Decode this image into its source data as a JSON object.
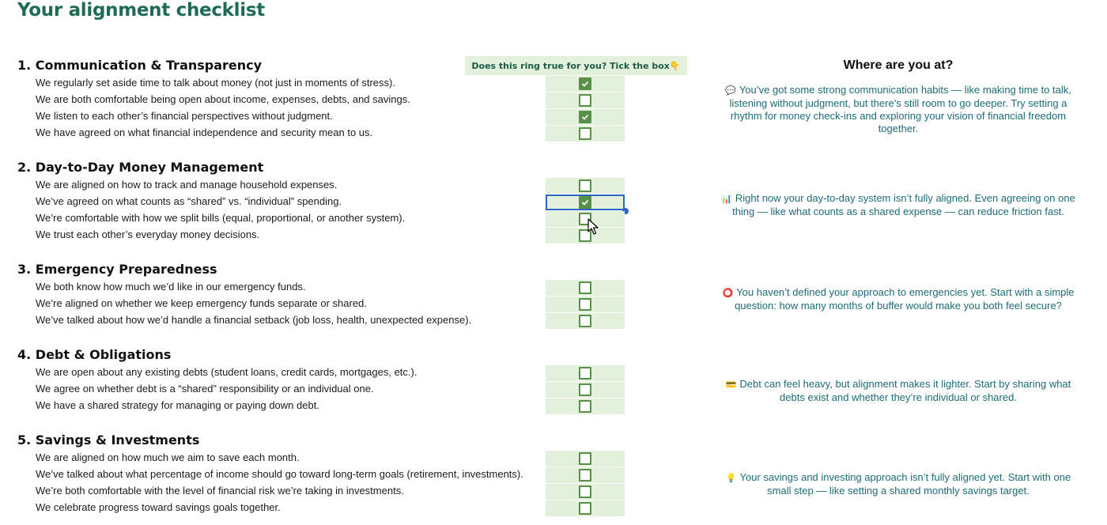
{
  "title": "Your alignment checklist",
  "column_header": "Does this ring true for you? Tick the box👇",
  "where_header": "Where are you at?",
  "sections": [
    {
      "title": "1. Communication & Transparency",
      "items": [
        {
          "text": "We regularly set aside time to talk about money (not just in moments of stress).",
          "checked": true
        },
        {
          "text": "We are both comfortable being open about income, expenses, debts, and savings.",
          "checked": false
        },
        {
          "text": "We listen to each other’s financial perspectives without judgment.",
          "checked": true
        },
        {
          "text": "We have agreed on what financial independence and security mean to us.",
          "checked": false
        }
      ],
      "feedback_icon": "💬",
      "feedback": "You’ve got some strong communication habits — like making time to talk, listening without judgment, but there’s still room to go deeper. Try setting a rhythm for money check-ins and exploring your vision of financial freedom together."
    },
    {
      "title": "2. Day-to-Day Money Management",
      "items": [
        {
          "text": "We are aligned on how to track and manage household expenses.",
          "checked": false
        },
        {
          "text": "We’ve agreed on what counts as “shared” vs. “individual” spending.",
          "checked": true
        },
        {
          "text": "We’re comfortable with how we split bills (equal, proportional, or another system).",
          "checked": false
        },
        {
          "text": "We trust each other’s everyday money decisions.",
          "checked": false
        }
      ],
      "feedback_icon": "📊",
      "feedback": "Right now your day-to-day system isn’t fully aligned. Even agreeing on one thing — like what counts as a shared expense — can reduce friction fast."
    },
    {
      "title": "3. Emergency Preparedness",
      "items": [
        {
          "text": "We both know how much we’d like in our emergency funds.",
          "checked": false
        },
        {
          "text": "We’re aligned on whether we keep emergency funds separate or shared.",
          "checked": false
        },
        {
          "text": "We’ve talked about how we’d handle a financial setback (job loss, health, unexpected expense).",
          "checked": false
        }
      ],
      "feedback_icon": "⭕",
      "feedback": "You haven’t defined your approach to emergencies yet. Start with a simple question: how many months of buffer would make you both feel secure?"
    },
    {
      "title": "4. Debt & Obligations",
      "items": [
        {
          "text": "We are open about any existing debts (student loans, credit cards, mortgages, etc.).",
          "checked": false
        },
        {
          "text": "We agree on whether debt is a “shared” responsibility or an individual one.",
          "checked": false
        },
        {
          "text": "We have a shared strategy for managing or paying down debt.",
          "checked": false
        }
      ],
      "feedback_icon": "💳",
      "feedback": "Debt can feel heavy, but alignment makes it lighter. Start by sharing what debts exist and whether they’re individual or shared."
    },
    {
      "title": "5. Savings & Investments",
      "items": [
        {
          "text": "We are aligned on how much we aim to save each month.",
          "checked": false
        },
        {
          "text": "We’ve talked about what percentage of income should go toward long-term goals (retirement, investments).",
          "checked": false
        },
        {
          "text": "We’re both comfortable with the level of financial risk we’re taking in investments.",
          "checked": false
        },
        {
          "text": "We celebrate progress toward savings goals together.",
          "checked": false
        }
      ],
      "feedback_icon": "💡",
      "feedback": "Your savings and investing approach isn’t fully aligned yet. Start with one small step — like setting a shared monthly savings target."
    }
  ]
}
